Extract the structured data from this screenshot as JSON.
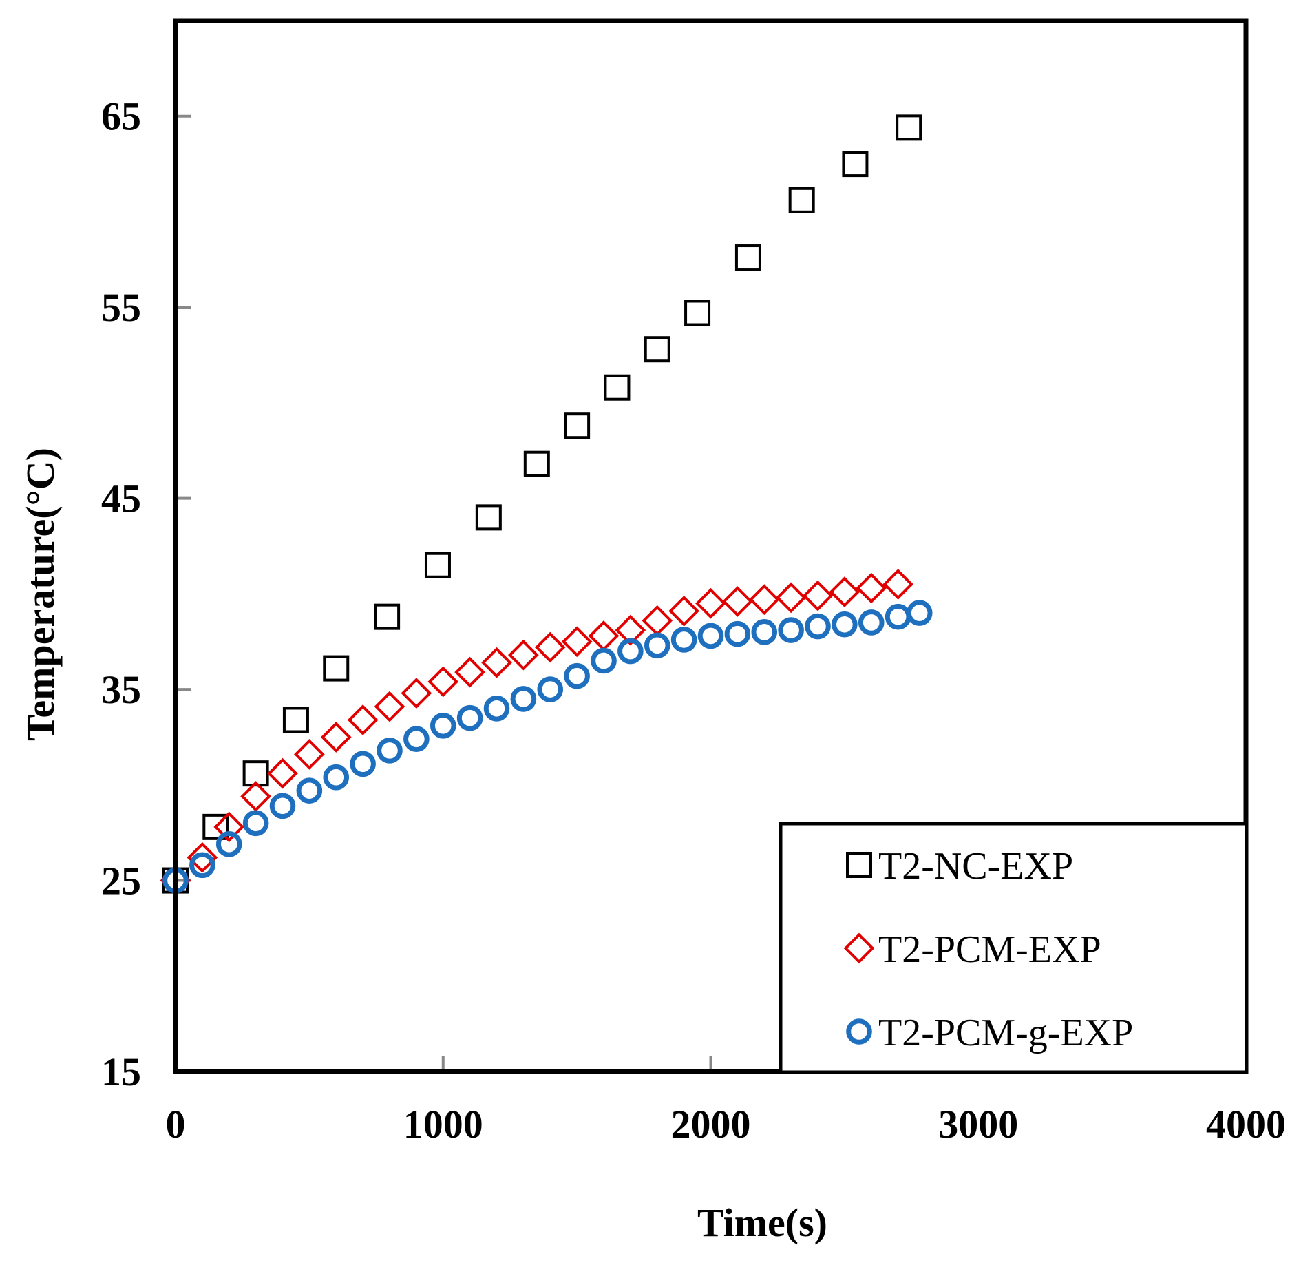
{
  "chart_data": {
    "type": "scatter",
    "title": "",
    "xlabel": "Time(s)",
    "ylabel": "Temperature(°C)",
    "xlim": [
      0,
      4000
    ],
    "ylim": [
      15,
      70
    ],
    "xticks": [
      0,
      1000,
      2000,
      3000,
      4000
    ],
    "yticks": [
      15,
      25,
      35,
      45,
      55,
      65
    ],
    "xtick_labels": [
      "0",
      "1000",
      "2000",
      "3000",
      "4000"
    ],
    "ytick_labels": [
      "15",
      "25",
      "35",
      "45",
      "55",
      "65"
    ],
    "grid": false,
    "legend_position": "bottom-right",
    "series": [
      {
        "name": "T2-NC-EXP",
        "marker": "square",
        "color": "#000000",
        "x": [
          0,
          150,
          300,
          450,
          600,
          790,
          980,
          1170,
          1350,
          1500,
          1650,
          1800,
          1950,
          2140,
          2340,
          2540,
          2740
        ],
        "y": [
          25.0,
          27.8,
          30.6,
          33.4,
          36.1,
          38.8,
          41.5,
          44.0,
          46.8,
          48.8,
          50.8,
          52.8,
          54.7,
          57.6,
          60.6,
          62.5,
          64.4
        ]
      },
      {
        "name": "T2-PCM-EXP",
        "marker": "diamond",
        "color": "#e00000",
        "x": [
          0,
          100,
          200,
          300,
          400,
          500,
          600,
          700,
          800,
          900,
          1000,
          1100,
          1200,
          1300,
          1400,
          1500,
          1600,
          1700,
          1800,
          1900,
          2000,
          2100,
          2200,
          2300,
          2400,
          2500,
          2600,
          2700
        ],
        "y": [
          25.0,
          26.2,
          27.8,
          29.4,
          30.6,
          31.6,
          32.5,
          33.4,
          34.1,
          34.8,
          35.4,
          35.9,
          36.4,
          36.8,
          37.2,
          37.5,
          37.8,
          38.1,
          38.6,
          39.1,
          39.5,
          39.6,
          39.7,
          39.8,
          39.9,
          40.1,
          40.3,
          40.5
        ]
      },
      {
        "name": "T2-PCM-g-EXP",
        "marker": "circle",
        "color": "#1f6fbf",
        "x": [
          0,
          100,
          200,
          300,
          400,
          500,
          600,
          700,
          800,
          900,
          1000,
          1100,
          1200,
          1300,
          1400,
          1500,
          1600,
          1700,
          1800,
          1900,
          2000,
          2100,
          2200,
          2300,
          2400,
          2500,
          2600,
          2700,
          2780
        ],
        "y": [
          25.0,
          25.8,
          26.9,
          28.0,
          28.9,
          29.7,
          30.4,
          31.1,
          31.8,
          32.4,
          33.1,
          33.5,
          34.0,
          34.5,
          35.0,
          35.7,
          36.5,
          37.0,
          37.3,
          37.6,
          37.8,
          37.9,
          38.0,
          38.1,
          38.3,
          38.4,
          38.5,
          38.8,
          39.0
        ]
      }
    ]
  }
}
